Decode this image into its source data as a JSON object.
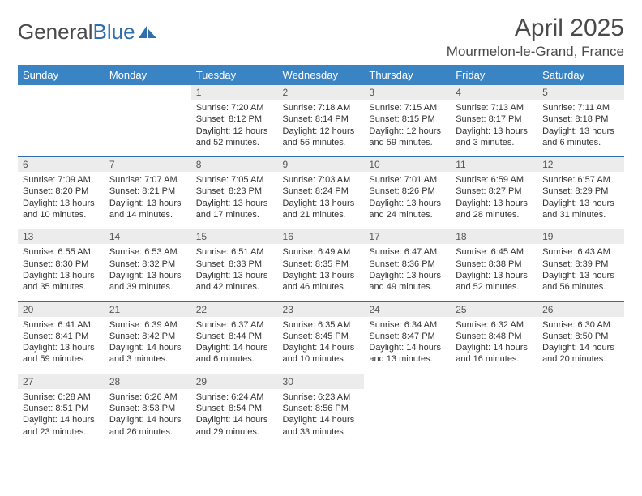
{
  "logo": {
    "text1": "General",
    "text2": "Blue"
  },
  "title": "April 2025",
  "location": "Mourmelon-le-Grand, France",
  "colors": {
    "header_bg": "#3b84c4",
    "header_text": "#ffffff",
    "daynum_bg": "#ececec",
    "rule": "#2f6fad",
    "logo_accent": "#2f6fad",
    "text": "#333333"
  },
  "day_labels": [
    "Sunday",
    "Monday",
    "Tuesday",
    "Wednesday",
    "Thursday",
    "Friday",
    "Saturday"
  ],
  "weeks": [
    [
      {
        "n": "",
        "lines": [
          "",
          "",
          ""
        ]
      },
      {
        "n": "",
        "lines": [
          "",
          "",
          ""
        ]
      },
      {
        "n": "1",
        "lines": [
          "Sunrise: 7:20 AM",
          "Sunset: 8:12 PM",
          "Daylight: 12 hours and 52 minutes."
        ]
      },
      {
        "n": "2",
        "lines": [
          "Sunrise: 7:18 AM",
          "Sunset: 8:14 PM",
          "Daylight: 12 hours and 56 minutes."
        ]
      },
      {
        "n": "3",
        "lines": [
          "Sunrise: 7:15 AM",
          "Sunset: 8:15 PM",
          "Daylight: 12 hours and 59 minutes."
        ]
      },
      {
        "n": "4",
        "lines": [
          "Sunrise: 7:13 AM",
          "Sunset: 8:17 PM",
          "Daylight: 13 hours and 3 minutes."
        ]
      },
      {
        "n": "5",
        "lines": [
          "Sunrise: 7:11 AM",
          "Sunset: 8:18 PM",
          "Daylight: 13 hours and 6 minutes."
        ]
      }
    ],
    [
      {
        "n": "6",
        "lines": [
          "Sunrise: 7:09 AM",
          "Sunset: 8:20 PM",
          "Daylight: 13 hours and 10 minutes."
        ]
      },
      {
        "n": "7",
        "lines": [
          "Sunrise: 7:07 AM",
          "Sunset: 8:21 PM",
          "Daylight: 13 hours and 14 minutes."
        ]
      },
      {
        "n": "8",
        "lines": [
          "Sunrise: 7:05 AM",
          "Sunset: 8:23 PM",
          "Daylight: 13 hours and 17 minutes."
        ]
      },
      {
        "n": "9",
        "lines": [
          "Sunrise: 7:03 AM",
          "Sunset: 8:24 PM",
          "Daylight: 13 hours and 21 minutes."
        ]
      },
      {
        "n": "10",
        "lines": [
          "Sunrise: 7:01 AM",
          "Sunset: 8:26 PM",
          "Daylight: 13 hours and 24 minutes."
        ]
      },
      {
        "n": "11",
        "lines": [
          "Sunrise: 6:59 AM",
          "Sunset: 8:27 PM",
          "Daylight: 13 hours and 28 minutes."
        ]
      },
      {
        "n": "12",
        "lines": [
          "Sunrise: 6:57 AM",
          "Sunset: 8:29 PM",
          "Daylight: 13 hours and 31 minutes."
        ]
      }
    ],
    [
      {
        "n": "13",
        "lines": [
          "Sunrise: 6:55 AM",
          "Sunset: 8:30 PM",
          "Daylight: 13 hours and 35 minutes."
        ]
      },
      {
        "n": "14",
        "lines": [
          "Sunrise: 6:53 AM",
          "Sunset: 8:32 PM",
          "Daylight: 13 hours and 39 minutes."
        ]
      },
      {
        "n": "15",
        "lines": [
          "Sunrise: 6:51 AM",
          "Sunset: 8:33 PM",
          "Daylight: 13 hours and 42 minutes."
        ]
      },
      {
        "n": "16",
        "lines": [
          "Sunrise: 6:49 AM",
          "Sunset: 8:35 PM",
          "Daylight: 13 hours and 46 minutes."
        ]
      },
      {
        "n": "17",
        "lines": [
          "Sunrise: 6:47 AM",
          "Sunset: 8:36 PM",
          "Daylight: 13 hours and 49 minutes."
        ]
      },
      {
        "n": "18",
        "lines": [
          "Sunrise: 6:45 AM",
          "Sunset: 8:38 PM",
          "Daylight: 13 hours and 52 minutes."
        ]
      },
      {
        "n": "19",
        "lines": [
          "Sunrise: 6:43 AM",
          "Sunset: 8:39 PM",
          "Daylight: 13 hours and 56 minutes."
        ]
      }
    ],
    [
      {
        "n": "20",
        "lines": [
          "Sunrise: 6:41 AM",
          "Sunset: 8:41 PM",
          "Daylight: 13 hours and 59 minutes."
        ]
      },
      {
        "n": "21",
        "lines": [
          "Sunrise: 6:39 AM",
          "Sunset: 8:42 PM",
          "Daylight: 14 hours and 3 minutes."
        ]
      },
      {
        "n": "22",
        "lines": [
          "Sunrise: 6:37 AM",
          "Sunset: 8:44 PM",
          "Daylight: 14 hours and 6 minutes."
        ]
      },
      {
        "n": "23",
        "lines": [
          "Sunrise: 6:35 AM",
          "Sunset: 8:45 PM",
          "Daylight: 14 hours and 10 minutes."
        ]
      },
      {
        "n": "24",
        "lines": [
          "Sunrise: 6:34 AM",
          "Sunset: 8:47 PM",
          "Daylight: 14 hours and 13 minutes."
        ]
      },
      {
        "n": "25",
        "lines": [
          "Sunrise: 6:32 AM",
          "Sunset: 8:48 PM",
          "Daylight: 14 hours and 16 minutes."
        ]
      },
      {
        "n": "26",
        "lines": [
          "Sunrise: 6:30 AM",
          "Sunset: 8:50 PM",
          "Daylight: 14 hours and 20 minutes."
        ]
      }
    ],
    [
      {
        "n": "27",
        "lines": [
          "Sunrise: 6:28 AM",
          "Sunset: 8:51 PM",
          "Daylight: 14 hours and 23 minutes."
        ]
      },
      {
        "n": "28",
        "lines": [
          "Sunrise: 6:26 AM",
          "Sunset: 8:53 PM",
          "Daylight: 14 hours and 26 minutes."
        ]
      },
      {
        "n": "29",
        "lines": [
          "Sunrise: 6:24 AM",
          "Sunset: 8:54 PM",
          "Daylight: 14 hours and 29 minutes."
        ]
      },
      {
        "n": "30",
        "lines": [
          "Sunrise: 6:23 AM",
          "Sunset: 8:56 PM",
          "Daylight: 14 hours and 33 minutes."
        ]
      },
      {
        "n": "",
        "lines": [
          "",
          "",
          ""
        ]
      },
      {
        "n": "",
        "lines": [
          "",
          "",
          ""
        ]
      },
      {
        "n": "",
        "lines": [
          "",
          "",
          ""
        ]
      }
    ]
  ]
}
